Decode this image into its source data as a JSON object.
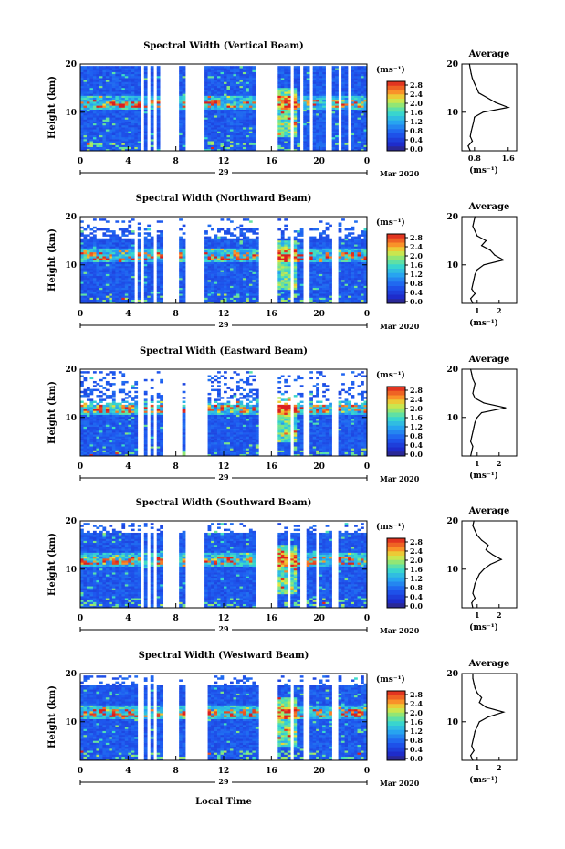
{
  "chart_data": [
    {
      "type": "heatmap",
      "title": "Spectral Width (Vertical Beam)",
      "ylabel": "Height (km)",
      "ylim": [
        2,
        20
      ],
      "yticks": [
        "20",
        "10"
      ],
      "xticks": [
        "0",
        "4",
        "8",
        "12",
        "16",
        "20",
        "0"
      ],
      "xlim": [
        0,
        24
      ],
      "day_label": "29",
      "date_label": "Mar 2020",
      "gaps_hours": [
        [
          5.0,
          5.3
        ],
        [
          5.6,
          5.8
        ],
        [
          6.1,
          6.3
        ],
        [
          6.8,
          7.1
        ],
        [
          7.2,
          8.2
        ],
        [
          8.8,
          10.5
        ],
        [
          14.8,
          16.6
        ],
        [
          17.6,
          17.8
        ],
        [
          18.4,
          18.6
        ],
        [
          19.2,
          19.5
        ],
        [
          20.5,
          21.0
        ],
        [
          21.6,
          21.9
        ],
        [
          22.4,
          22.6
        ]
      ],
      "colorbar": {
        "unit": "(ms⁻¹)",
        "ticks": [
          "2.8",
          "2.4",
          "2.0",
          "1.6",
          "1.2",
          "0.8",
          "0.4",
          "0.0"
        ],
        "range": [
          0.0,
          3.0
        ]
      },
      "average_profile": {
        "title": "Average",
        "xlabel": "(ms⁻¹)",
        "xticks": [
          "0.8",
          "1.6"
        ],
        "xlim": [
          0.5,
          1.8
        ],
        "height_km": [
          2,
          3,
          4,
          5,
          6,
          7,
          8,
          9,
          10,
          11,
          12,
          13,
          14,
          15,
          16,
          17,
          18,
          19,
          20
        ],
        "values": [
          0.7,
          0.65,
          0.75,
          0.7,
          0.72,
          0.75,
          0.78,
          0.8,
          1.0,
          1.6,
          1.3,
          1.1,
          0.9,
          0.85,
          0.8,
          0.75,
          0.72,
          0.7,
          0.68
        ]
      }
    },
    {
      "type": "heatmap",
      "title": "Spectral Width (Northward Beam)",
      "ylabel": "Height (km)",
      "ylim": [
        2,
        20
      ],
      "yticks": [
        "20",
        "10"
      ],
      "xticks": [
        "0",
        "4",
        "8",
        "12",
        "16",
        "20",
        "0"
      ],
      "xlim": [
        0,
        24
      ],
      "day_label": "29",
      "date_label": "Mar 2020",
      "gaps_hours": [
        [
          4.5,
          4.8
        ],
        [
          5.2,
          5.4
        ],
        [
          6.1,
          6.4
        ],
        [
          7.0,
          8.2
        ],
        [
          8.7,
          10.5
        ],
        [
          15.0,
          16.6
        ],
        [
          17.5,
          17.8
        ],
        [
          18.6,
          19.2
        ],
        [
          21.0,
          21.6
        ]
      ],
      "colorbar": {
        "unit": "(ms⁻¹)",
        "ticks": [
          "2.8",
          "2.4",
          "2.0",
          "1.6",
          "1.2",
          "0.8",
          "0.4",
          "0.0"
        ],
        "range": [
          0.0,
          3.0
        ]
      },
      "average_profile": {
        "title": "Average",
        "xlabel": "(ms⁻¹)",
        "xticks": [
          "1",
          "2"
        ],
        "xlim": [
          0.3,
          2.8
        ],
        "height_km": [
          2,
          3,
          4,
          5,
          6,
          7,
          8,
          9,
          10,
          11,
          12,
          13,
          14,
          15,
          16,
          17,
          18,
          19,
          20
        ],
        "values": [
          0.8,
          0.7,
          0.9,
          0.75,
          0.8,
          0.85,
          0.9,
          1.0,
          1.3,
          2.2,
          1.8,
          1.6,
          1.2,
          1.4,
          1.0,
          0.9,
          0.8,
          0.85,
          0.9
        ]
      }
    },
    {
      "type": "heatmap",
      "title": "Spectral Width (Eastward Beam)",
      "ylabel": "Height (km)",
      "ylim": [
        2,
        20
      ],
      "yticks": [
        "20",
        "10"
      ],
      "xticks": [
        "0",
        "4",
        "8",
        "12",
        "16",
        "20",
        "0"
      ],
      "xlim": [
        0,
        24
      ],
      "day_label": "29",
      "date_label": "Mar 2020",
      "gaps_hours": [
        [
          4.9,
          5.2
        ],
        [
          5.6,
          5.8
        ],
        [
          6.2,
          6.4
        ],
        [
          7.0,
          8.4
        ],
        [
          8.8,
          10.6
        ],
        [
          15.0,
          16.6
        ],
        [
          17.5,
          17.8
        ],
        [
          18.6,
          19.2
        ],
        [
          21.1,
          21.5
        ]
      ],
      "colorbar": {
        "unit": "(ms⁻¹)",
        "ticks": [
          "2.8",
          "2.4",
          "2.0",
          "1.6",
          "1.2",
          "0.8",
          "0.4",
          "0.0"
        ],
        "range": [
          0.0,
          3.0
        ]
      },
      "average_profile": {
        "title": "Average",
        "xlabel": "(ms⁻¹)",
        "xticks": [
          "1",
          "2"
        ],
        "xlim": [
          0.3,
          2.8
        ],
        "height_km": [
          2,
          3,
          4,
          5,
          6,
          7,
          8,
          9,
          10,
          11,
          12,
          13,
          14,
          15,
          16,
          17,
          18,
          19,
          20
        ],
        "values": [
          0.7,
          0.75,
          0.8,
          0.7,
          0.75,
          0.8,
          0.85,
          0.9,
          1.0,
          1.2,
          2.3,
          1.3,
          0.9,
          0.8,
          0.85,
          0.9,
          0.8,
          0.75,
          0.7
        ]
      }
    },
    {
      "type": "heatmap",
      "title": "Spectral Width (Southward Beam)",
      "ylabel": "Height (km)",
      "ylim": [
        2,
        20
      ],
      "yticks": [
        "20",
        "10"
      ],
      "xticks": [
        "0",
        "4",
        "8",
        "12",
        "16",
        "20",
        "0"
      ],
      "xlim": [
        0,
        24
      ],
      "day_label": "29",
      "date_label": "Mar 2020",
      "gaps_hours": [
        [
          5.0,
          5.3
        ],
        [
          5.6,
          5.8
        ],
        [
          6.2,
          6.4
        ],
        [
          7.0,
          8.2
        ],
        [
          8.8,
          10.5
        ],
        [
          14.8,
          16.6
        ],
        [
          17.4,
          17.7
        ],
        [
          18.5,
          19.0
        ],
        [
          19.8,
          20.1
        ],
        [
          21.0,
          21.5
        ]
      ],
      "colorbar": {
        "unit": "(ms⁻¹)",
        "ticks": [
          "2.8",
          "2.4",
          "2.0",
          "1.6",
          "1.2",
          "0.8",
          "0.4",
          "0.0"
        ],
        "range": [
          0.0,
          3.0
        ]
      },
      "average_profile": {
        "title": "Average",
        "xlabel": "(ms⁻¹)",
        "xticks": [
          "1",
          "2"
        ],
        "xlim": [
          0.3,
          2.8
        ],
        "height_km": [
          2,
          3,
          4,
          5,
          6,
          7,
          8,
          9,
          10,
          11,
          12,
          13,
          14,
          15,
          16,
          17,
          18,
          19,
          20
        ],
        "values": [
          0.8,
          0.75,
          0.9,
          0.8,
          0.85,
          0.9,
          1.0,
          1.1,
          1.3,
          1.6,
          2.1,
          1.7,
          1.4,
          1.5,
          1.2,
          1.0,
          0.9,
          0.8,
          0.85
        ]
      }
    },
    {
      "type": "heatmap",
      "title": "Spectral Width (Westward Beam)",
      "ylabel": "Height (km)",
      "ylim": [
        2,
        20
      ],
      "yticks": [
        "20",
        "10"
      ],
      "xticks": [
        "0",
        "4",
        "8",
        "12",
        "16",
        "20",
        "0"
      ],
      "xlim": [
        0,
        24
      ],
      "day_label": "29",
      "date_label": "Mar 2020",
      "xlabel": "Local Time",
      "gaps_hours": [
        [
          4.9,
          5.2
        ],
        [
          5.6,
          5.8
        ],
        [
          6.2,
          6.4
        ],
        [
          7.0,
          8.2
        ],
        [
          8.8,
          10.6
        ],
        [
          15.0,
          16.6
        ],
        [
          17.5,
          17.8
        ],
        [
          18.6,
          19.1
        ],
        [
          21.0,
          21.5
        ]
      ],
      "colorbar": {
        "unit": "(ms⁻¹)",
        "ticks": [
          "2.8",
          "2.4",
          "2.0",
          "1.6",
          "1.2",
          "0.8",
          "0.4",
          "0.0"
        ],
        "range": [
          0.0,
          3.0
        ]
      },
      "average_profile": {
        "title": "Average",
        "xlabel": "(ms⁻¹)",
        "xticks": [
          "1",
          "2"
        ],
        "xlim": [
          0.3,
          2.8
        ],
        "height_km": [
          2,
          3,
          4,
          5,
          6,
          7,
          8,
          9,
          10,
          11,
          12,
          13,
          14,
          15,
          16,
          17,
          18,
          19,
          20
        ],
        "values": [
          0.8,
          0.7,
          0.85,
          0.75,
          0.8,
          0.85,
          0.9,
          1.0,
          1.1,
          1.5,
          2.2,
          1.4,
          1.1,
          1.2,
          1.0,
          0.9,
          0.85,
          0.8,
          0.8
        ]
      }
    }
  ]
}
